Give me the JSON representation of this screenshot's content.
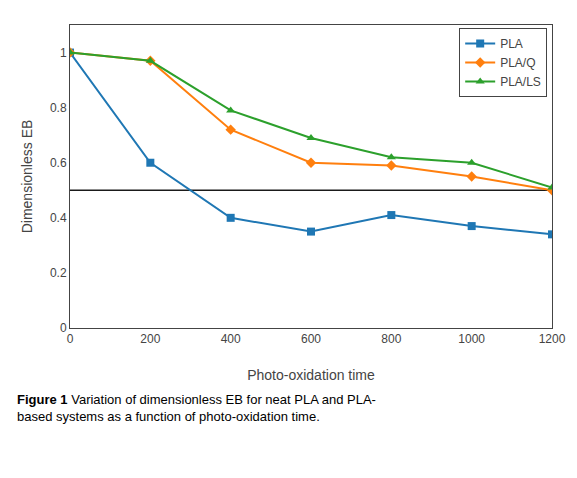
{
  "chart_data": {
    "type": "line",
    "x_label": "Photo-oxidation time",
    "y_label": "Dimensionless EB",
    "x": [
      0,
      200,
      400,
      600,
      800,
      1000,
      1200
    ],
    "series": [
      {
        "name": "PLA",
        "marker": "square",
        "line_style": "solid",
        "values": [
          1.0,
          0.6,
          0.4,
          0.35,
          0.41,
          0.37,
          0.34
        ]
      },
      {
        "name": "PLA/Q",
        "marker": "diamond",
        "line_style": "solid",
        "values": [
          1.0,
          0.97,
          0.72,
          0.6,
          0.59,
          0.55,
          0.5
        ]
      },
      {
        "name": "PLA/LS",
        "marker": "triangle-up",
        "line_style": "solid",
        "values": [
          1.0,
          0.97,
          0.79,
          0.69,
          0.62,
          0.6,
          0.51
        ]
      }
    ],
    "hline": {
      "y": 0.5,
      "color": "#1a1a1a"
    },
    "xlim": [
      0,
      1200
    ],
    "ylim": [
      0,
      1.1
    ],
    "xticks": [
      0,
      200,
      400,
      600,
      800,
      1000,
      1200
    ],
    "yticks": [
      0,
      0.2,
      0.4,
      0.6,
      0.8,
      1.0
    ],
    "grid": false,
    "legend": "upper right",
    "annotations": [
      "Figure 1",
      "Variation of dimensionless EB for neat PLA and PLA-\nbased systems as a function of photo-oxidation time."
    ]
  }
}
